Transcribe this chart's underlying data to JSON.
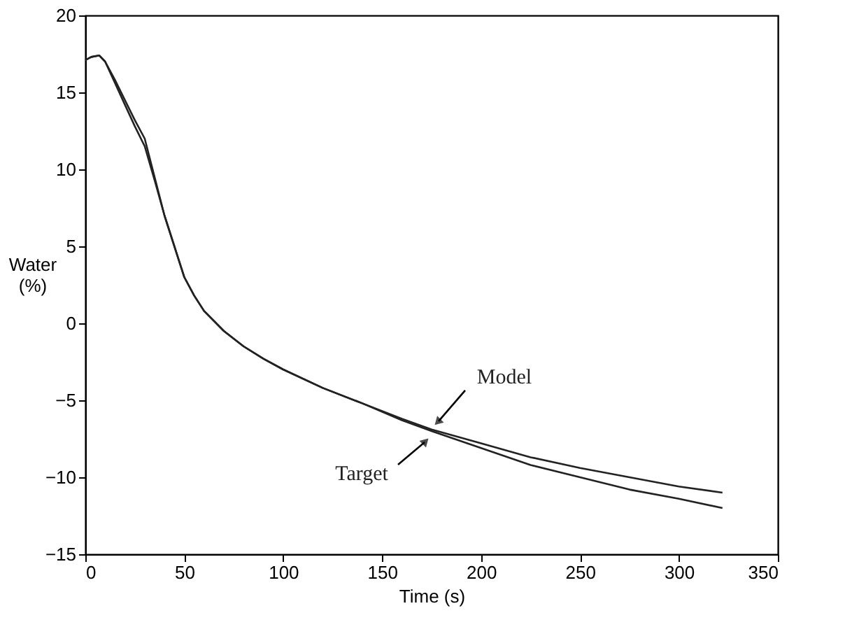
{
  "chart_data": {
    "type": "line",
    "xlabel": "Time (s)",
    "ylabel": "Water\n(%)",
    "xlim": [
      0,
      350
    ],
    "xticks": [
      0,
      50,
      100,
      150,
      200,
      250,
      300,
      350
    ],
    "ylim": [
      -15,
      20
    ],
    "yticks": [
      -15,
      -10,
      -5,
      0,
      5,
      10,
      15,
      20
    ],
    "grid": false,
    "marker": "none",
    "line_style": "solid",
    "series": [
      {
        "name": "Model",
        "color": "#222222",
        "x": [
          0,
          3,
          7,
          10,
          15,
          20,
          25,
          30,
          35,
          40,
          45,
          50,
          55,
          60,
          70,
          80,
          90,
          100,
          120,
          140,
          160,
          175,
          200,
          225,
          250,
          275,
          300,
          322
        ],
        "values": [
          17.1,
          17.3,
          17.4,
          17.0,
          15.8,
          14.5,
          13.2,
          12.0,
          9.5,
          7.0,
          5.0,
          3.0,
          1.8,
          0.8,
          -0.5,
          -1.5,
          -2.3,
          -3.0,
          -4.2,
          -5.2,
          -6.2,
          -6.9,
          -7.8,
          -8.7,
          -9.4,
          -10.0,
          -10.6,
          -11.0
        ]
      },
      {
        "name": "Target",
        "color": "#222222",
        "x": [
          0,
          3,
          7,
          10,
          15,
          20,
          25,
          30,
          35,
          40,
          45,
          50,
          55,
          60,
          70,
          80,
          90,
          100,
          120,
          140,
          160,
          175,
          200,
          225,
          250,
          275,
          300,
          322
        ],
        "values": [
          17.1,
          17.3,
          17.4,
          17.0,
          15.6,
          14.2,
          12.8,
          11.5,
          9.3,
          7.0,
          5.0,
          3.0,
          1.8,
          0.8,
          -0.5,
          -1.5,
          -2.3,
          -3.0,
          -4.2,
          -5.2,
          -6.3,
          -7.0,
          -8.1,
          -9.2,
          -10.0,
          -10.8,
          -11.4,
          -12.0
        ]
      }
    ]
  }
}
